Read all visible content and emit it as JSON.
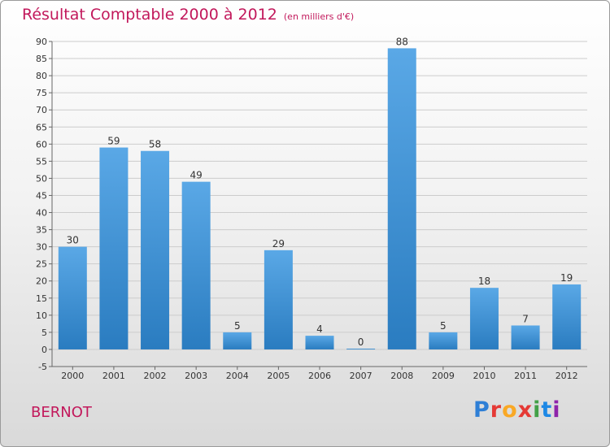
{
  "header": {
    "title": "Résultat Comptable 2000 à 2012",
    "subtitle": "(en milliers d'€)"
  },
  "footer": {
    "commune": "BERNOT",
    "logo_text": "Proxiti",
    "logo_colors": [
      "#2e7fd6",
      "#e53935",
      "#f9a825",
      "#e53935",
      "#43a047",
      "#1e88e5",
      "#8e24aa"
    ]
  },
  "colors": {
    "title": "#c2185b",
    "bar_light": "#5aa8e6",
    "bar_dark": "#2a7cc0",
    "grid": "#cccccc"
  },
  "chart_data": {
    "type": "bar",
    "categories": [
      "2000",
      "2001",
      "2002",
      "2003",
      "2004",
      "2005",
      "2006",
      "2007",
      "2008",
      "2009",
      "2010",
      "2011",
      "2012"
    ],
    "values": [
      30,
      59,
      58,
      49,
      5,
      29,
      4,
      0,
      88,
      5,
      18,
      7,
      19
    ],
    "title": "Résultat Comptable 2000 à 2012",
    "ylim": [
      -5,
      90
    ],
    "yticks": [
      -5,
      0,
      5,
      10,
      15,
      20,
      25,
      30,
      35,
      40,
      45,
      50,
      55,
      60,
      65,
      70,
      75,
      80,
      85,
      90
    ],
    "grid": true,
    "data_labels": true
  }
}
